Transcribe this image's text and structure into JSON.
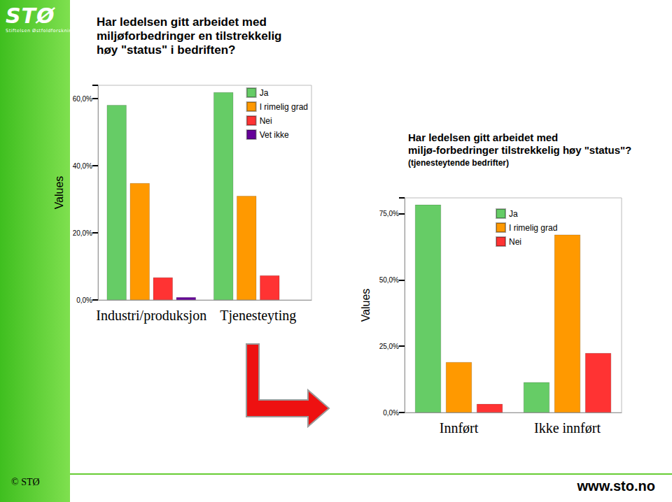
{
  "header": {
    "logo": "STØ",
    "logo_subtitle": "Stiftelsen Østfoldforskning",
    "title": "Har ledelsen gitt arbeidet med miljøforbedringer en tilstrekkelig høy \"status\" i bedriften?"
  },
  "footer": {
    "copyright": "© STØ",
    "url": "www.sto.no"
  },
  "chart_data": [
    {
      "type": "bar",
      "ylabel": "Values",
      "categories": [
        "Industri/produksjon",
        "Tjenesteyting"
      ],
      "series": [
        {
          "name": "Ja",
          "color": "#66cc66",
          "values": [
            58.1,
            61.9
          ]
        },
        {
          "name": "I rimelig grad",
          "color": "#ff9900",
          "values": [
            34.8,
            31.0
          ]
        },
        {
          "name": "Nei",
          "color": "#ff3333",
          "values": [
            6.7,
            7.3
          ]
        },
        {
          "name": "Vet ikke",
          "color": "#660099",
          "values": [
            0.8,
            null
          ]
        }
      ],
      "ylim": [
        0,
        64
      ],
      "yticks": [
        {
          "value": 0,
          "label": "0,0%"
        },
        {
          "value": 20,
          "label": "20,0%"
        },
        {
          "value": 40,
          "label": "40,0%"
        },
        {
          "value": 60,
          "label": "60,0%"
        }
      ],
      "grid": false,
      "legend": "top-right",
      "data_labels": false
    },
    {
      "type": "bar",
      "title": "Har ledelsen gitt arbeidet med miljø-forbedringer tilstrekkelig høy \"status\"?",
      "subtitle": "(tjenesteytende bedrifter)",
      "ylabel": "Values",
      "categories": [
        "Innført",
        "Ikke innført"
      ],
      "series": [
        {
          "name": "Ja",
          "color": "#66cc66",
          "values": [
            78.4,
            11.4
          ]
        },
        {
          "name": "I rimelig grad",
          "color": "#ff9900",
          "values": [
            19.0,
            67.1
          ]
        },
        {
          "name": "Nei",
          "color": "#ff3333",
          "values": [
            3.2,
            22.4
          ]
        }
      ],
      "ylim": [
        0,
        81
      ],
      "yticks": [
        {
          "value": 0,
          "label": "0,0%"
        },
        {
          "value": 25,
          "label": "25,0%"
        },
        {
          "value": 50,
          "label": "50,0%"
        },
        {
          "value": 75,
          "label": "75,0%"
        }
      ],
      "grid": false,
      "legend": "top-center",
      "data_labels": false
    }
  ]
}
